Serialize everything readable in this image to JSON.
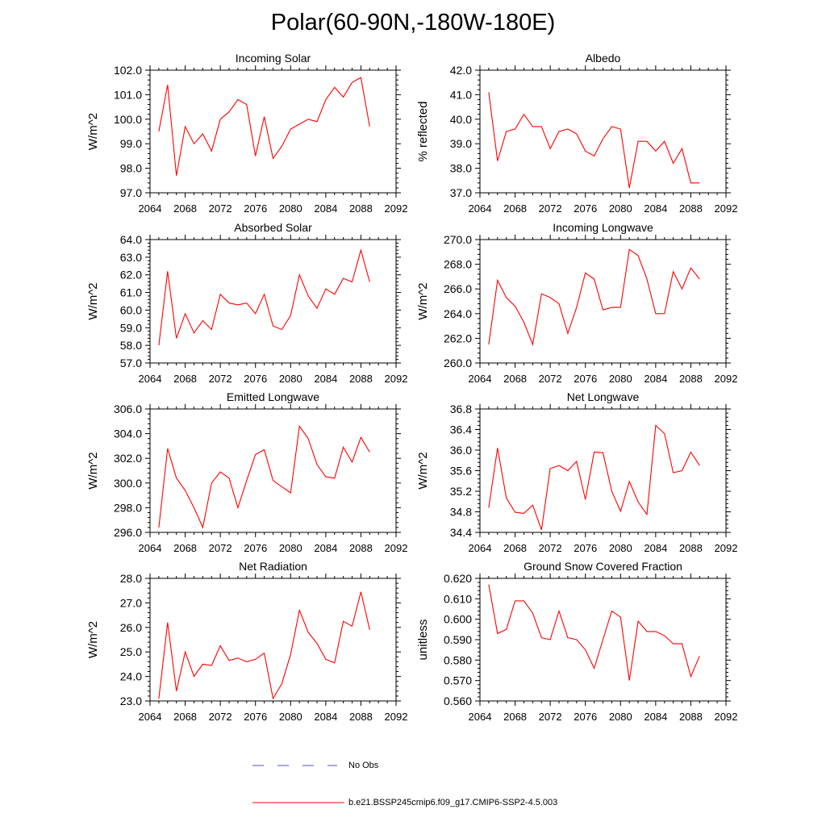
{
  "page": {
    "title": "Polar(60-90N,-180W-180E)"
  },
  "chart_data": [
    {
      "type": "line",
      "title": "Incoming Solar",
      "ylabel": "W/m^2",
      "xlim": [
        2064,
        2092
      ],
      "ylim": [
        97.0,
        102.0
      ],
      "xticks": [
        2064,
        2068,
        2072,
        2076,
        2080,
        2084,
        2088,
        2092
      ],
      "xtick_labels": [
        "2064",
        "2068",
        "2072",
        "2076",
        "2080",
        "2084",
        "2088",
        "2092"
      ],
      "yticks": [
        97.0,
        98.0,
        99.0,
        100.0,
        101.0,
        102.0
      ],
      "ytick_labels": [
        "97.0",
        "98.0",
        "99.0",
        "100.0",
        "101.0",
        "102.0"
      ],
      "series": [
        {
          "name": "b.e21.BSSP245cmip6.f09_g17.CMIP6-SSP2-4.5.003",
          "color": "#ff0000",
          "x": [
            2065,
            2066,
            2067,
            2068,
            2069,
            2070,
            2071,
            2072,
            2073,
            2074,
            2075,
            2076,
            2077,
            2078,
            2079,
            2080,
            2081,
            2082,
            2083,
            2084,
            2085,
            2086,
            2087,
            2088,
            2089
          ],
          "y": [
            99.5,
            101.4,
            97.7,
            99.7,
            99.0,
            99.4,
            98.7,
            100.0,
            100.3,
            100.8,
            100.6,
            98.5,
            100.1,
            98.4,
            98.9,
            99.6,
            99.8,
            100.0,
            99.9,
            100.8,
            101.3,
            100.9,
            101.5,
            101.7,
            99.7
          ]
        }
      ]
    },
    {
      "type": "line",
      "title": "Albedo",
      "ylabel": "% reflected",
      "xlim": [
        2064,
        2092
      ],
      "ylim": [
        37.0,
        42.0
      ],
      "xticks": [
        2064,
        2068,
        2072,
        2076,
        2080,
        2084,
        2088,
        2092
      ],
      "xtick_labels": [
        "2064",
        "2068",
        "2072",
        "2076",
        "2080",
        "2084",
        "2088",
        "2092"
      ],
      "yticks": [
        37.0,
        38.0,
        39.0,
        40.0,
        41.0,
        42.0
      ],
      "ytick_labels": [
        "37.0",
        "38.0",
        "39.0",
        "40.0",
        "41.0",
        "42.0"
      ],
      "series": [
        {
          "name": "b.e21.BSSP245cmip6.f09_g17.CMIP6-SSP2-4.5.003",
          "color": "#ff0000",
          "x": [
            2065,
            2066,
            2067,
            2068,
            2069,
            2070,
            2071,
            2072,
            2073,
            2074,
            2075,
            2076,
            2077,
            2078,
            2079,
            2080,
            2081,
            2082,
            2083,
            2084,
            2085,
            2086,
            2087,
            2088,
            2089
          ],
          "y": [
            41.1,
            38.3,
            39.5,
            39.6,
            40.2,
            39.7,
            39.7,
            38.8,
            39.5,
            39.6,
            39.4,
            38.7,
            38.5,
            39.2,
            39.7,
            39.6,
            37.2,
            39.1,
            39.1,
            38.7,
            39.1,
            38.2,
            38.8,
            37.4,
            37.4
          ]
        }
      ]
    },
    {
      "type": "line",
      "title": "Absorbed Solar",
      "ylabel": "W/m^2",
      "xlim": [
        2064,
        2092
      ],
      "ylim": [
        57.0,
        64.0
      ],
      "xticks": [
        2064,
        2068,
        2072,
        2076,
        2080,
        2084,
        2088,
        2092
      ],
      "xtick_labels": [
        "2064",
        "2068",
        "2072",
        "2076",
        "2080",
        "2084",
        "2088",
        "2092"
      ],
      "yticks": [
        57.0,
        58.0,
        59.0,
        60.0,
        61.0,
        62.0,
        63.0,
        64.0
      ],
      "ytick_labels": [
        "57.0",
        "58.0",
        "59.0",
        "60.0",
        "61.0",
        "62.0",
        "63.0",
        "64.0"
      ],
      "series": [
        {
          "name": "b.e21.BSSP245cmip6.f09_g17.CMIP6-SSP2-4.5.003",
          "color": "#ff0000",
          "x": [
            2065,
            2066,
            2067,
            2068,
            2069,
            2070,
            2071,
            2072,
            2073,
            2074,
            2075,
            2076,
            2077,
            2078,
            2079,
            2080,
            2081,
            2082,
            2083,
            2084,
            2085,
            2086,
            2087,
            2088,
            2089
          ],
          "y": [
            58.0,
            62.2,
            58.4,
            59.8,
            58.7,
            59.4,
            58.9,
            60.9,
            60.4,
            60.3,
            60.4,
            59.8,
            60.9,
            59.1,
            58.9,
            59.7,
            62.0,
            60.8,
            60.1,
            61.2,
            60.9,
            61.8,
            61.6,
            63.4,
            61.6
          ]
        }
      ]
    },
    {
      "type": "line",
      "title": "Incoming Longwave",
      "ylabel": "W/m^2",
      "xlim": [
        2064,
        2092
      ],
      "ylim": [
        260.0,
        270.0
      ],
      "xticks": [
        2064,
        2068,
        2072,
        2076,
        2080,
        2084,
        2088,
        2092
      ],
      "xtick_labels": [
        "2064",
        "2068",
        "2072",
        "2076",
        "2080",
        "2084",
        "2088",
        "2092"
      ],
      "yticks": [
        260.0,
        262.0,
        264.0,
        266.0,
        268.0,
        270.0
      ],
      "ytick_labels": [
        "260.0",
        "262.0",
        "264.0",
        "266.0",
        "268.0",
        "270.0"
      ],
      "series": [
        {
          "name": "b.e21.BSSP245cmip6.f09_g17.CMIP6-SSP2-4.5.003",
          "color": "#ff0000",
          "x": [
            2065,
            2066,
            2067,
            2068,
            2069,
            2070,
            2071,
            2072,
            2073,
            2074,
            2075,
            2076,
            2077,
            2078,
            2079,
            2080,
            2081,
            2082,
            2083,
            2084,
            2085,
            2086,
            2087,
            2088,
            2089
          ],
          "y": [
            261.5,
            266.7,
            265.3,
            264.6,
            263.3,
            261.5,
            265.6,
            265.3,
            264.8,
            262.4,
            264.5,
            267.3,
            266.8,
            264.3,
            264.5,
            264.5,
            269.2,
            268.7,
            266.8,
            264.0,
            264.0,
            267.4,
            266.0,
            267.7,
            266.8
          ]
        }
      ]
    },
    {
      "type": "line",
      "title": "Emitted Longwave",
      "ylabel": "W/m^2",
      "xlim": [
        2064,
        2092
      ],
      "ylim": [
        296.0,
        306.0
      ],
      "xticks": [
        2064,
        2068,
        2072,
        2076,
        2080,
        2084,
        2088,
        2092
      ],
      "xtick_labels": [
        "2064",
        "2068",
        "2072",
        "2076",
        "2080",
        "2084",
        "2088",
        "2092"
      ],
      "yticks": [
        296.0,
        298.0,
        300.0,
        302.0,
        304.0,
        306.0
      ],
      "ytick_labels": [
        "296.0",
        "298.0",
        "300.0",
        "302.0",
        "304.0",
        "306.0"
      ],
      "series": [
        {
          "name": "b.e21.BSSP245cmip6.f09_g17.CMIP6-SSP2-4.5.003",
          "color": "#ff0000",
          "x": [
            2065,
            2066,
            2067,
            2068,
            2069,
            2070,
            2071,
            2072,
            2073,
            2074,
            2075,
            2076,
            2077,
            2078,
            2079,
            2080,
            2081,
            2082,
            2083,
            2084,
            2085,
            2086,
            2087,
            2088,
            2089
          ],
          "y": [
            296.4,
            302.8,
            300.4,
            299.4,
            298.0,
            296.4,
            300.0,
            300.9,
            300.4,
            298.0,
            300.2,
            302.3,
            302.7,
            300.2,
            299.7,
            299.2,
            304.6,
            303.6,
            301.5,
            300.5,
            300.4,
            302.9,
            301.7,
            303.7,
            302.5
          ]
        }
      ]
    },
    {
      "type": "line",
      "title": "Net Longwave",
      "ylabel": "W/m^2",
      "xlim": [
        2064,
        2092
      ],
      "ylim": [
        34.4,
        36.8
      ],
      "xticks": [
        2064,
        2068,
        2072,
        2076,
        2080,
        2084,
        2088,
        2092
      ],
      "xtick_labels": [
        "2064",
        "2068",
        "2072",
        "2076",
        "2080",
        "2084",
        "2088",
        "2092"
      ],
      "yticks": [
        34.4,
        34.8,
        35.2,
        35.6,
        36.0,
        36.4,
        36.8
      ],
      "ytick_labels": [
        "34.4",
        "34.8",
        "35.2",
        "35.6",
        "36.0",
        "36.4",
        "36.8"
      ],
      "series": [
        {
          "name": "b.e21.BSSP245cmip6.f09_g17.CMIP6-SSP2-4.5.003",
          "color": "#ff0000",
          "x": [
            2065,
            2066,
            2067,
            2068,
            2069,
            2070,
            2071,
            2072,
            2073,
            2074,
            2075,
            2076,
            2077,
            2078,
            2079,
            2080,
            2081,
            2082,
            2083,
            2084,
            2085,
            2086,
            2087,
            2088,
            2089
          ],
          "y": [
            34.88,
            36.04,
            35.07,
            34.79,
            34.77,
            34.93,
            34.45,
            35.64,
            35.7,
            35.6,
            35.78,
            35.04,
            35.96,
            35.95,
            35.2,
            34.81,
            35.39,
            34.99,
            34.75,
            36.48,
            36.32,
            35.56,
            35.6,
            35.96,
            35.7
          ]
        }
      ]
    },
    {
      "type": "line",
      "title": "Net Radiation",
      "ylabel": "W/m^2",
      "xlim": [
        2064,
        2092
      ],
      "ylim": [
        23.0,
        28.0
      ],
      "xticks": [
        2064,
        2068,
        2072,
        2076,
        2080,
        2084,
        2088,
        2092
      ],
      "xtick_labels": [
        "2064",
        "2068",
        "2072",
        "2076",
        "2080",
        "2084",
        "2088",
        "2092"
      ],
      "yticks": [
        23.0,
        24.0,
        25.0,
        26.0,
        27.0,
        28.0
      ],
      "ytick_labels": [
        "23.0",
        "24.0",
        "25.0",
        "26.0",
        "27.0",
        "28.0"
      ],
      "series": [
        {
          "name": "b.e21.BSSP245cmip6.f09_g17.CMIP6-SSP2-4.5.003",
          "color": "#ff0000",
          "x": [
            2065,
            2066,
            2067,
            2068,
            2069,
            2070,
            2071,
            2072,
            2073,
            2074,
            2075,
            2076,
            2077,
            2078,
            2079,
            2080,
            2081,
            2082,
            2083,
            2084,
            2085,
            2086,
            2087,
            2088,
            2089
          ],
          "y": [
            23.1,
            26.2,
            23.4,
            25.0,
            24.0,
            24.5,
            24.45,
            25.25,
            24.65,
            24.75,
            24.6,
            24.7,
            24.95,
            23.1,
            23.7,
            24.9,
            26.7,
            25.8,
            25.35,
            24.7,
            24.55,
            26.25,
            26.05,
            27.45,
            25.9
          ]
        }
      ]
    },
    {
      "type": "line",
      "title": "Ground Snow Covered Fraction",
      "ylabel": "unitless",
      "xlim": [
        2064,
        2092
      ],
      "ylim": [
        0.56,
        0.62
      ],
      "xticks": [
        2064,
        2068,
        2072,
        2076,
        2080,
        2084,
        2088,
        2092
      ],
      "xtick_labels": [
        "2064",
        "2068",
        "2072",
        "2076",
        "2080",
        "2084",
        "2088",
        "2092"
      ],
      "yticks": [
        0.56,
        0.57,
        0.58,
        0.59,
        0.6,
        0.61,
        0.62
      ],
      "ytick_labels": [
        "0.560",
        "0.570",
        "0.580",
        "0.590",
        "0.600",
        "0.610",
        "0.620"
      ],
      "series": [
        {
          "name": "b.e21.BSSP245cmip6.f09_g17.CMIP6-SSP2-4.5.003",
          "color": "#ff0000",
          "x": [
            2065,
            2066,
            2067,
            2068,
            2069,
            2070,
            2071,
            2072,
            2073,
            2074,
            2075,
            2076,
            2077,
            2078,
            2079,
            2080,
            2081,
            2082,
            2083,
            2084,
            2085,
            2086,
            2087,
            2088,
            2089
          ],
          "y": [
            0.617,
            0.593,
            0.595,
            0.609,
            0.609,
            0.603,
            0.591,
            0.59,
            0.604,
            0.591,
            0.59,
            0.585,
            0.576,
            0.59,
            0.604,
            0.601,
            0.57,
            0.599,
            0.594,
            0.594,
            0.592,
            0.588,
            0.588,
            0.572,
            0.582
          ]
        }
      ]
    }
  ],
  "legend": {
    "obs_label": "No Obs",
    "obs_color": "#4d4dcc",
    "model_label": "b.e21.BSSP245cmip6.f09_g17.CMIP6-SSP2-4.5.003",
    "model_color": "#ff0000"
  }
}
